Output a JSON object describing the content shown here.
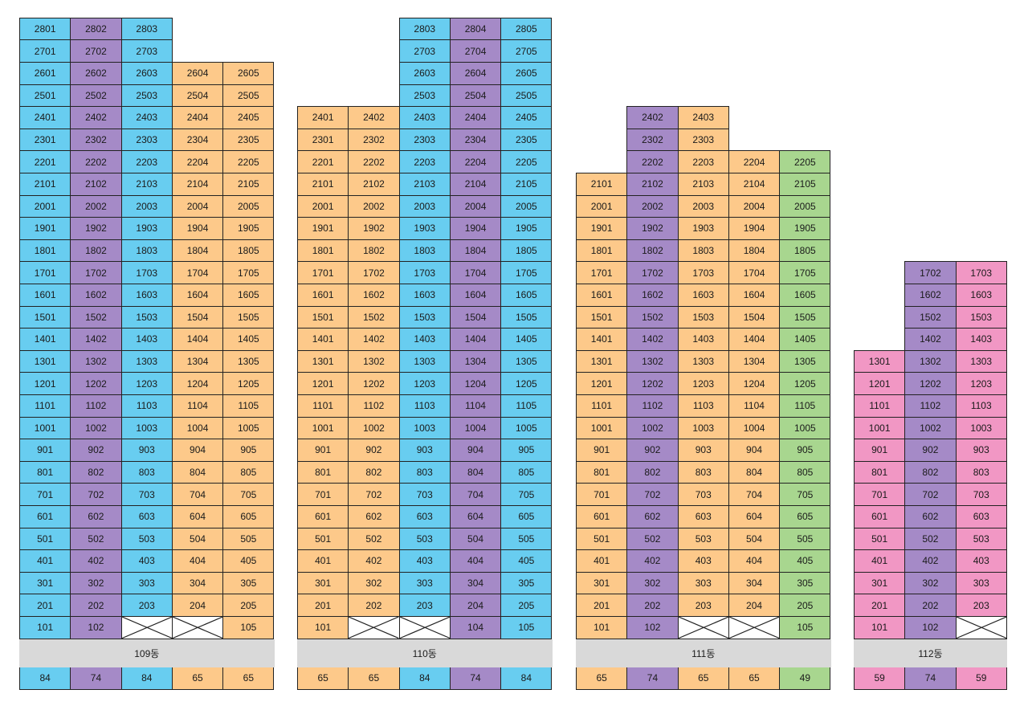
{
  "colors": {
    "84": "#68cdf0",
    "74": "#a58ac7",
    "65": "#fdc98a",
    "49": "#a8d68f",
    "59": "#f197c4"
  },
  "buildings": [
    {
      "name": "109동",
      "types": [
        "84",
        "74",
        "84",
        "65",
        "65"
      ],
      "top_floors": [
        28,
        28,
        28,
        26,
        26
      ],
      "empty_101_line": [
        3,
        4
      ]
    },
    {
      "name": "110동",
      "types": [
        "65",
        "65",
        "84",
        "74",
        "84"
      ],
      "top_floors": [
        24,
        24,
        28,
        28,
        28
      ],
      "empty_101_line": [
        2,
        3
      ]
    },
    {
      "name": "111동",
      "types": [
        "65",
        "74",
        "65",
        "65",
        "49"
      ],
      "top_floors": [
        21,
        24,
        24,
        22,
        22
      ],
      "empty_101_line": [
        3,
        4
      ]
    },
    {
      "name": "112동",
      "types": [
        "59",
        "74",
        "59"
      ],
      "top_floors": [
        13,
        17,
        17
      ],
      "empty_101_line": [
        3
      ]
    }
  ]
}
